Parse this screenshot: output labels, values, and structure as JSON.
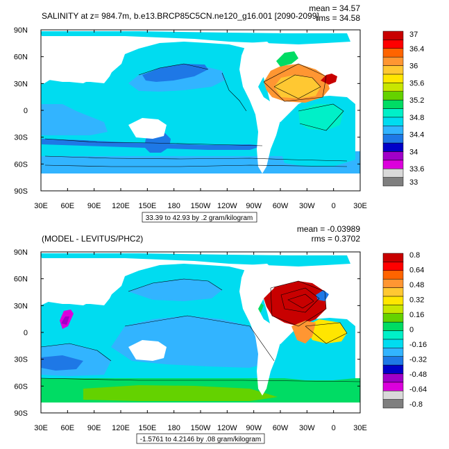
{
  "chart_data": [
    {
      "type": "heatmap",
      "title": "SALINITY at z= 984.7m, b.e13.BRCP85C5CN.ne120_g16.001 [2090-2099]",
      "stats": {
        "mean": "mean = 34.57",
        "rms": "rms = 34.58"
      },
      "x_ticks": [
        "30E",
        "60E",
        "90E",
        "120E",
        "150E",
        "180",
        "150W",
        "120W",
        "90W",
        "60W",
        "30W",
        "0",
        "30E"
      ],
      "y_ticks": [
        "90N",
        "60N",
        "30N",
        "0",
        "30S",
        "60S",
        "90S"
      ],
      "xlim": [
        30,
        390
      ],
      "ylim": [
        -90,
        90
      ],
      "contour_info": "33.39 to 42.93 by .2 gram/kilogram",
      "colorbar": {
        "colors": [
          "#7f7f7f",
          "#d9d9d9",
          "#dc00dc",
          "#a000c8",
          "#0000c8",
          "#1e78e6",
          "#32b4ff",
          "#00dcf0",
          "#00f0c8",
          "#00dc64",
          "#64d200",
          "#c8e600",
          "#ffe600",
          "#ffc832",
          "#ff9632",
          "#ff6400",
          "#ff0000",
          "#c80000"
        ],
        "labels": [
          "33",
          "33.6",
          "34",
          "34.4",
          "34.8",
          "35.2",
          "35.6",
          "36",
          "36.4",
          "37"
        ]
      }
    },
    {
      "type": "heatmap",
      "title": "(MODEL - LEVITUS/PHC2)",
      "stats": {
        "mean": "mean = -0.03989",
        "rms": "rms = 0.3702"
      },
      "x_ticks": [
        "30E",
        "60E",
        "90E",
        "120E",
        "150E",
        "180",
        "150W",
        "120W",
        "90W",
        "60W",
        "30W",
        "0",
        "30E"
      ],
      "y_ticks": [
        "90N",
        "60N",
        "30N",
        "0",
        "30S",
        "60S",
        "90S"
      ],
      "xlim": [
        30,
        390
      ],
      "ylim": [
        -90,
        90
      ],
      "contour_info": "-1.5761 to 4.2146 by .08 gram/kilogram",
      "colorbar": {
        "colors": [
          "#7f7f7f",
          "#d9d9d9",
          "#dc00dc",
          "#a000c8",
          "#0000c8",
          "#1e78e6",
          "#32b4ff",
          "#00dcf0",
          "#00f0c8",
          "#00dc64",
          "#64d200",
          "#c8e600",
          "#ffe600",
          "#ffc832",
          "#ff9632",
          "#ff6400",
          "#ff0000",
          "#c80000"
        ],
        "labels": [
          "0.8",
          "0.64",
          "0.48",
          "0.32",
          "0.16",
          "0",
          "-0.16",
          "-0.32",
          "-0.48",
          "-0.64",
          "-0.8"
        ]
      }
    }
  ]
}
